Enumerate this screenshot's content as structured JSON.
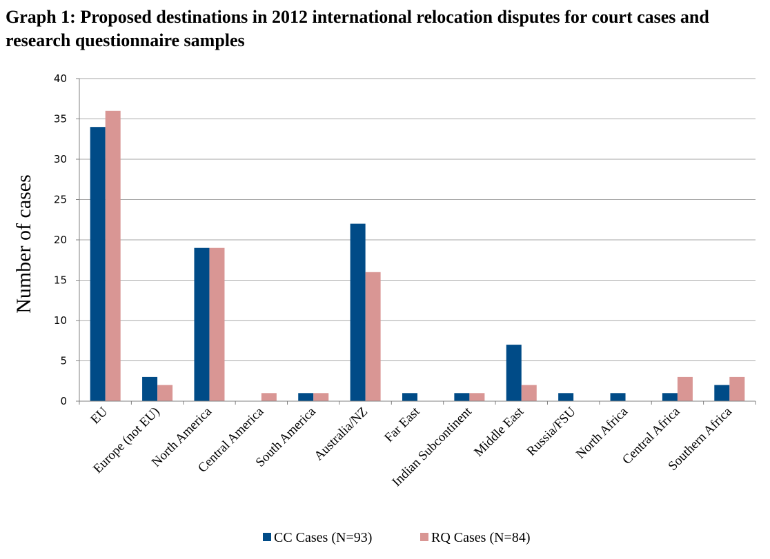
{
  "title": "Graph 1: Proposed destinations in 2012 international relocation disputes for court cases and research questionnaire samples",
  "chart_data": {
    "type": "bar",
    "title": "Graph 1: Proposed destinations in 2012 international relocation disputes for court cases and research questionnaire samples",
    "xlabel": "",
    "ylabel": "Number of cases",
    "ylim": [
      0,
      40
    ],
    "yticks": [
      0,
      5,
      10,
      15,
      20,
      25,
      30,
      35,
      40
    ],
    "grid": true,
    "legend_position": "bottom",
    "categories": [
      "EU",
      "Europe (not EU)",
      "North America",
      "Central America",
      "South America",
      "Australia/NZ",
      "Far East",
      "Indian Subcontinent",
      "Middle East",
      "Russia/FSU",
      "North Africa",
      "Central Africa",
      "Southern Africa"
    ],
    "series": [
      {
        "name": "CC Cases (N=93)",
        "color": "#004b87",
        "values": [
          34,
          3,
          19,
          0,
          1,
          22,
          1,
          1,
          7,
          1,
          1,
          1,
          2
        ]
      },
      {
        "name": "RQ Cases (N=84)",
        "color": "#d99694",
        "values": [
          36,
          2,
          19,
          1,
          1,
          16,
          0,
          1,
          2,
          0,
          0,
          3,
          3
        ]
      }
    ]
  }
}
